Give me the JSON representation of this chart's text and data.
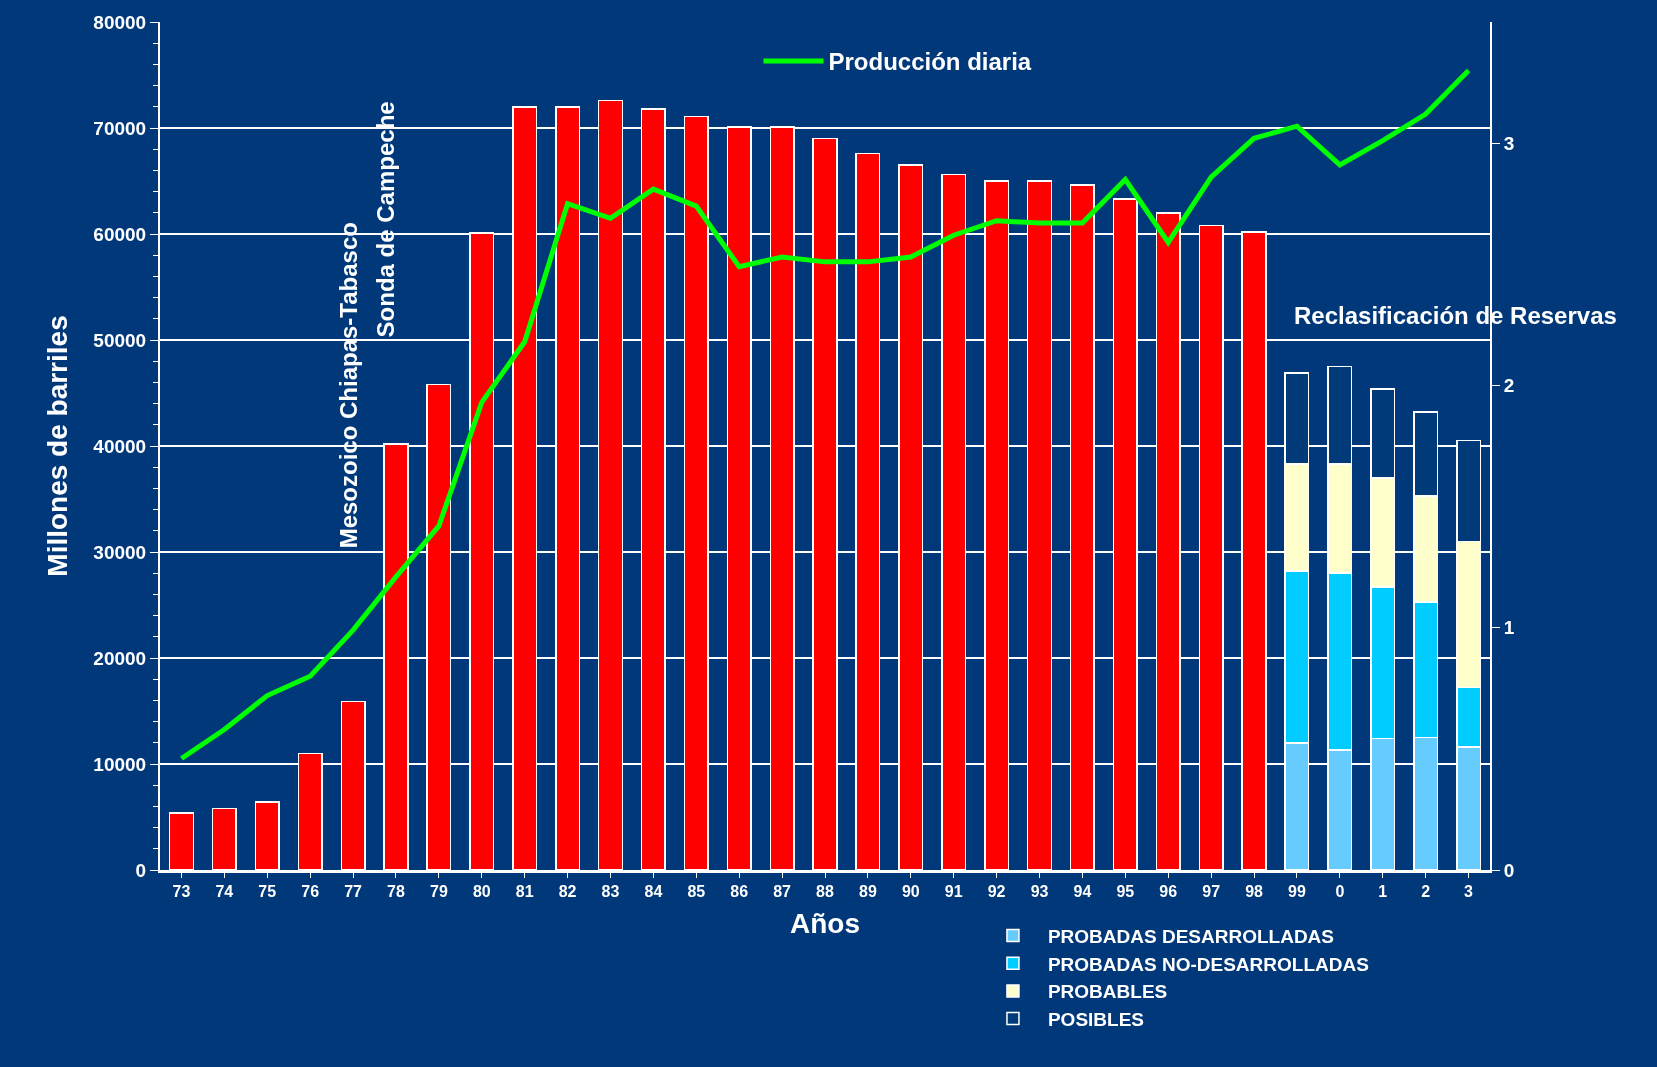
{
  "chart_data": {
    "type": "bar",
    "stacked": true,
    "categories": [
      "73",
      "74",
      "75",
      "76",
      "77",
      "78",
      "79",
      "80",
      "81",
      "82",
      "83",
      "84",
      "85",
      "86",
      "87",
      "88",
      "89",
      "90",
      "91",
      "92",
      "93",
      "94",
      "95",
      "96",
      "97",
      "98",
      "99",
      "0",
      "1",
      "2",
      "3"
    ],
    "xlabel": "Años",
    "ylabel": "Millones de barriles",
    "ylim": [
      0,
      80000
    ],
    "yticks": [
      0,
      10000,
      20000,
      30000,
      40000,
      50000,
      60000,
      70000,
      80000
    ],
    "y2lim": [
      0,
      3.5
    ],
    "y2ticks": [
      0,
      1,
      2,
      3
    ],
    "grid": "y",
    "legend": "bottom",
    "series": [
      {
        "color": "#ff0000",
        "values": [
          5400,
          5800,
          6400,
          11000,
          15900,
          40200,
          45800,
          60100,
          72000,
          72000,
          72600,
          71800,
          71100,
          70100,
          70100,
          69000,
          67600,
          66500,
          65600,
          65000,
          65000,
          64600,
          63300,
          62000,
          60800,
          60200,
          null,
          null,
          null,
          null,
          null
        ]
      },
      {
        "name": "PROBADAS DESARROLLADAS",
        "color": "#66ccff",
        "values": [
          null,
          null,
          null,
          null,
          null,
          null,
          null,
          null,
          null,
          null,
          null,
          null,
          null,
          null,
          null,
          null,
          null,
          null,
          null,
          null,
          null,
          null,
          null,
          null,
          null,
          null,
          12000,
          11300,
          12400,
          12500,
          11600
        ]
      },
      {
        "name": "PROBADAS NO-DESARROLLADAS",
        "color": "#00ccff",
        "values": [
          null,
          null,
          null,
          null,
          null,
          null,
          null,
          null,
          null,
          null,
          null,
          null,
          null,
          null,
          null,
          null,
          null,
          null,
          null,
          null,
          null,
          null,
          null,
          null,
          null,
          null,
          16200,
          16700,
          14300,
          12800,
          5600
        ]
      },
      {
        "name": "PROBABLES",
        "color": "#ffffcc",
        "values": [
          null,
          null,
          null,
          null,
          null,
          null,
          null,
          null,
          null,
          null,
          null,
          null,
          null,
          null,
          null,
          null,
          null,
          null,
          null,
          null,
          null,
          null,
          null,
          null,
          null,
          null,
          10100,
          10300,
          10300,
          10000,
          13800
        ]
      },
      {
        "name": "POSIBLES",
        "color": "#003a78",
        "values": [
          null,
          null,
          null,
          null,
          null,
          null,
          null,
          null,
          null,
          null,
          null,
          null,
          null,
          null,
          null,
          null,
          null,
          null,
          null,
          null,
          null,
          null,
          null,
          null,
          null,
          null,
          8600,
          9200,
          8400,
          7900,
          9500
        ]
      },
      {
        "name": "Producción diaria",
        "type": "line",
        "axis": "y2",
        "color": "#00ff00",
        "values": [
          0.46,
          0.58,
          0.72,
          0.8,
          0.99,
          1.21,
          1.42,
          1.93,
          2.18,
          2.75,
          2.69,
          2.81,
          2.74,
          2.49,
          2.53,
          2.51,
          2.51,
          2.53,
          2.62,
          2.68,
          2.67,
          2.67,
          2.85,
          2.59,
          2.86,
          3.02,
          3.07,
          2.91,
          3.01,
          3.12,
          3.3
        ]
      }
    ],
    "annotations": [
      "Mesozoico Chiapas-Tabasco",
      "Sonda de Campeche",
      "Reclasificación de Reservas"
    ]
  }
}
